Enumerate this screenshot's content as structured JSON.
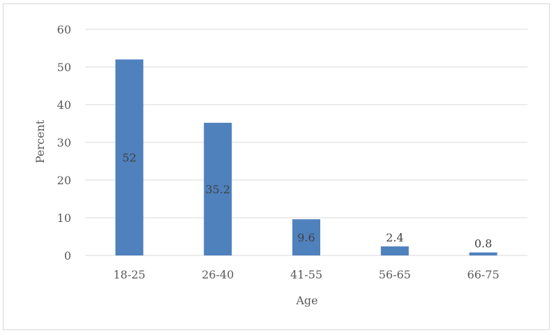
{
  "chart_data": {
    "type": "bar",
    "categories": [
      "18-25",
      "26-40",
      "41-55",
      "56-65",
      "66-75"
    ],
    "values": [
      52,
      35.2,
      9.6,
      2.4,
      0.8
    ],
    "data_labels": [
      "52",
      "35.2",
      "9.6",
      "2.4",
      "0.8"
    ],
    "title": "",
    "xlabel": "Age",
    "ylabel": "Percent",
    "ylim": [
      0,
      60
    ],
    "yticks": [
      0,
      10,
      20,
      30,
      40,
      50,
      60
    ],
    "grid": true,
    "legend": "none",
    "bar_color": "#4f81bd",
    "grid_color": "#d9d9d9"
  }
}
